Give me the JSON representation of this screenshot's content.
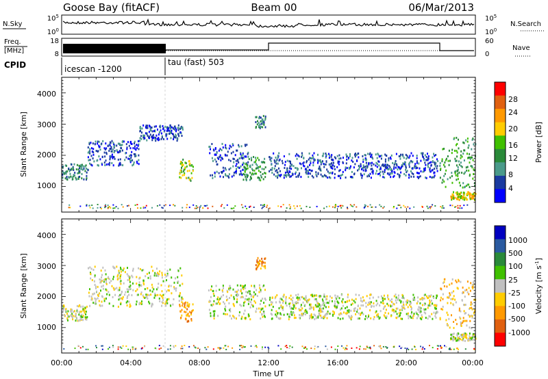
{
  "header": {
    "station": "Goose Bay (fitACF)",
    "beam": "Beam 00",
    "date": "06/Mar/2013"
  },
  "strips": {
    "nsky_label": "N.Sky",
    "nsky_ticks": [
      "10^5",
      "10^0"
    ],
    "nsearch_label": "N.Search",
    "nsearch_ticks": [
      "10^5",
      "10^0"
    ],
    "freq_label": "Freq.",
    "freq_unit": "[MHz]",
    "freq_ticks": [
      "18",
      "8"
    ],
    "nave_label": "Nave",
    "nave_ticks": [
      "60",
      "0"
    ],
    "cpid_label": "CPID",
    "cpid_segments": [
      "icescan -1200",
      "tau (fast) 503"
    ]
  },
  "chart_data": [
    {
      "type": "heatmap",
      "title": "",
      "xlabel": "",
      "ylabel": "Slant Range [km]",
      "x_ticks": [
        "00:00",
        "04:00",
        "08:00",
        "12:00",
        "16:00",
        "20:00",
        "00:00"
      ],
      "y_ticks": [
        "1000",
        "2000",
        "3000",
        "4000"
      ],
      "colorbar_label": "Power [dB]",
      "colorbar_ticks": [
        "28",
        "24",
        "20",
        "16",
        "12",
        "8",
        "4"
      ],
      "colors": [
        "#ff0000",
        "#e06010",
        "#ff9900",
        "#ffcc00",
        "#40c000",
        "#2a8a3a",
        "#4a9a8a",
        "#1a3aa0",
        "#0000ff"
      ],
      "echo_regions": [
        {
          "t0": 0.0,
          "t1": 1.5,
          "r0": 1250,
          "r1": 1750,
          "level": 6
        },
        {
          "t0": 1.5,
          "t1": 4.5,
          "r0": 1700,
          "r1": 2500,
          "level": 7
        },
        {
          "t0": 4.5,
          "t1": 7.0,
          "r0": 2500,
          "r1": 3000,
          "level": 7
        },
        {
          "t0": 6.8,
          "t1": 7.6,
          "r0": 1200,
          "r1": 1900,
          "level": 4
        },
        {
          "t0": 8.5,
          "t1": 10.8,
          "r0": 1300,
          "r1": 2400,
          "level": 7
        },
        {
          "t0": 10.5,
          "t1": 11.8,
          "r0": 1200,
          "r1": 2000,
          "level": 5
        },
        {
          "t0": 11.2,
          "t1": 11.8,
          "r0": 2900,
          "r1": 3300,
          "level": 6
        },
        {
          "t0": 12.0,
          "t1": 21.8,
          "r0": 1300,
          "r1": 2100,
          "level": 7
        },
        {
          "t0": 21.9,
          "t1": 24.0,
          "r0": 1000,
          "r1": 2600,
          "level": 5
        },
        {
          "t0": 22.5,
          "t1": 24.0,
          "r0": 600,
          "r1": 850,
          "level": 3
        }
      ]
    },
    {
      "type": "heatmap",
      "title": "",
      "xlabel": "Time UT",
      "ylabel": "Slant Range [km]",
      "x_ticks": [
        "00:00",
        "04:00",
        "08:00",
        "12:00",
        "16:00",
        "20:00",
        "00:00"
      ],
      "y_ticks": [
        "1000",
        "2000",
        "3000",
        "4000"
      ],
      "colorbar_label": "Velocity [m s^-1]",
      "colorbar_ticks": [
        "1000",
        "500",
        "100",
        "25",
        "-25",
        "-100",
        "-500",
        "-1000"
      ],
      "colors": [
        "#0000c0",
        "#2a5aa0",
        "#2a8a3a",
        "#40c000",
        "#c0c0c0",
        "#ffcc00",
        "#ff9900",
        "#e06010",
        "#ff0000"
      ],
      "echo_regions": [
        {
          "t0": 0.0,
          "t1": 1.5,
          "r0": 1250,
          "r1": 1750,
          "level": 4
        },
        {
          "t0": 1.5,
          "t1": 7.0,
          "r0": 1700,
          "r1": 3000,
          "level": 4
        },
        {
          "t0": 6.8,
          "t1": 7.6,
          "r0": 1200,
          "r1": 1900,
          "level": 6
        },
        {
          "t0": 8.5,
          "t1": 11.8,
          "r0": 1300,
          "r1": 2400,
          "level": 4
        },
        {
          "t0": 11.2,
          "t1": 11.8,
          "r0": 2900,
          "r1": 3300,
          "level": 6
        },
        {
          "t0": 12.0,
          "t1": 21.8,
          "r0": 1300,
          "r1": 2100,
          "level": 4
        },
        {
          "t0": 21.9,
          "t1": 24.0,
          "r0": 1000,
          "r1": 2600,
          "level": 5
        },
        {
          "t0": 22.5,
          "t1": 24.0,
          "r0": 600,
          "r1": 850,
          "level": 4
        }
      ]
    }
  ]
}
